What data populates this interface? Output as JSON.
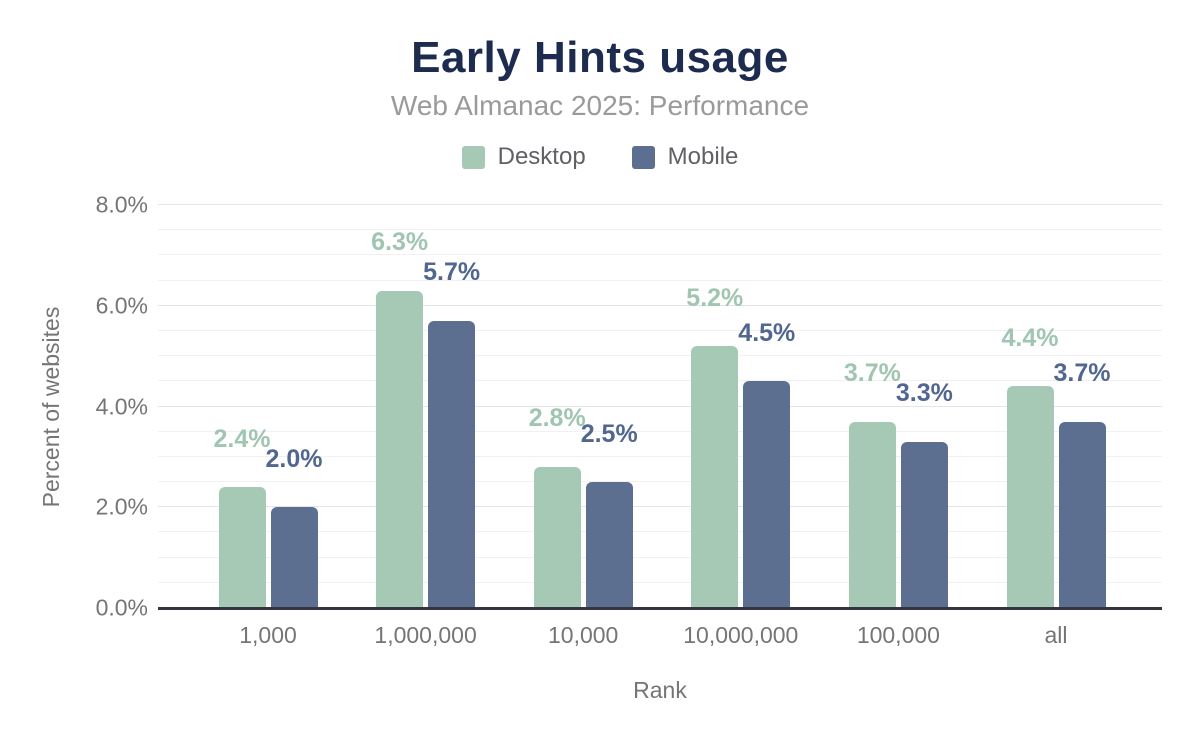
{
  "title": "Early Hints usage",
  "subtitle": "Web Almanac 2025: Performance",
  "legend": {
    "items": [
      {
        "label": "Desktop",
        "color": "#a6c9b6"
      },
      {
        "label": "Mobile",
        "color": "#5d6f90"
      }
    ]
  },
  "colors": {
    "background": "#ffffff",
    "title_text": "#1d2b4f",
    "subtitle_text": "#9a9a9a",
    "legend_text": "#5f6165",
    "axis_text": "#757575",
    "axis_line": "#33373d",
    "gridline_major": "#e5e5e5",
    "gridline_minor": "#f1f1f1",
    "desktop_bar": "#a6c9b6",
    "mobile_bar": "#5d6f90",
    "desktop_label_text": "#a0c5b0",
    "mobile_label_text": "#51678f"
  },
  "chart_data": {
    "type": "bar",
    "title": "Early Hints usage",
    "subtitle": "Web Almanac 2025: Performance",
    "xlabel": "Rank",
    "ylabel": "Percent of websites",
    "categories": [
      "1,000",
      "1,000,000",
      "10,000",
      "10,000,000",
      "100,000",
      "all"
    ],
    "series": [
      {
        "name": "Desktop",
        "color": "#a6c9b6",
        "label_color": "#a0c5b0",
        "values": [
          2.4,
          6.3,
          2.8,
          5.2,
          3.7,
          4.4
        ],
        "labels": [
          "2.4%",
          "6.3%",
          "2.8%",
          "5.2%",
          "3.7%",
          "4.4%"
        ]
      },
      {
        "name": "Mobile",
        "color": "#5d6f90",
        "label_color": "#51678f",
        "values": [
          2.0,
          5.7,
          2.5,
          4.5,
          3.3,
          3.7
        ],
        "labels": [
          "2.0%",
          "5.7%",
          "2.5%",
          "4.5%",
          "3.3%",
          "3.7%"
        ]
      }
    ],
    "ylim": [
      0,
      8
    ],
    "ytick_values": [
      0,
      2,
      4,
      6,
      8
    ],
    "yticks": [
      "0.0%",
      "2.0%",
      "4.0%",
      "6.0%",
      "8.0%"
    ],
    "ytick_minor_step": 0.5,
    "grid": true,
    "legend_position": "top"
  }
}
